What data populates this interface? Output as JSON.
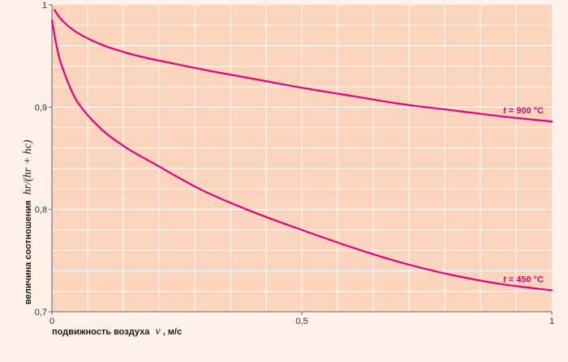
{
  "chart_data": {
    "type": "line",
    "xlabel": "подвижность воздуха",
    "xlabel_var": "v",
    "xlabel_unit": ", м/с",
    "ylabel": "величина соотношения",
    "ylabel_formula": "hr/(hr + hc)",
    "xlim": [
      0,
      1
    ],
    "ylim": [
      0.7,
      1
    ],
    "x_ticks": [
      {
        "value": 0,
        "label": "0"
      },
      {
        "value": 0.5,
        "label": "0,5"
      },
      {
        "value": 1,
        "label": "1"
      }
    ],
    "y_ticks": [
      {
        "value": 0.7,
        "label": "0,7"
      },
      {
        "value": 0.8,
        "label": "0,8"
      },
      {
        "value": 0.9,
        "label": "0,9"
      },
      {
        "value": 1,
        "label": "1"
      }
    ],
    "grid": true,
    "series": [
      {
        "name": "t = 900 °C",
        "name_var": "t",
        "name_rest": " = 900 °C",
        "x": [
          0.005,
          0.02,
          0.05,
          0.1,
          0.15,
          0.2,
          0.3,
          0.4,
          0.5,
          0.6,
          0.7,
          0.8,
          0.9,
          1.0
        ],
        "y": [
          0.995,
          0.985,
          0.973,
          0.961,
          0.953,
          0.947,
          0.937,
          0.928,
          0.919,
          0.911,
          0.903,
          0.897,
          0.891,
          0.886
        ]
      },
      {
        "name": "t = 450 °C",
        "name_var": "t",
        "name_rest": " = 450 °C",
        "x": [
          0.0,
          0.01,
          0.02,
          0.05,
          0.1,
          0.15,
          0.2,
          0.3,
          0.4,
          0.5,
          0.6,
          0.7,
          0.8,
          0.9,
          1.0
        ],
        "y": [
          0.985,
          0.958,
          0.94,
          0.906,
          0.878,
          0.86,
          0.846,
          0.819,
          0.798,
          0.78,
          0.763,
          0.748,
          0.736,
          0.727,
          0.721
        ]
      }
    ]
  },
  "colors": {
    "background": "#fdf1ea",
    "plot_fill": "#fad4bd",
    "grid": "#ffffff",
    "axis": "#666666",
    "series": "#e6007e",
    "label_text": "#e6007e"
  }
}
